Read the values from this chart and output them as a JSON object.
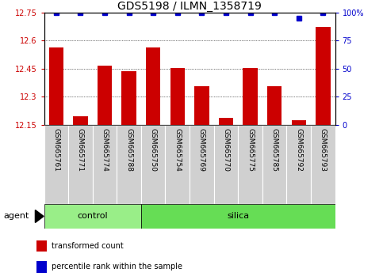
{
  "title": "GDS5198 / ILMN_1358719",
  "samples": [
    "GSM665761",
    "GSM665771",
    "GSM665774",
    "GSM665788",
    "GSM665750",
    "GSM665754",
    "GSM665769",
    "GSM665770",
    "GSM665775",
    "GSM665785",
    "GSM665792",
    "GSM665793"
  ],
  "red_values": [
    12.565,
    12.195,
    12.465,
    12.435,
    12.565,
    12.455,
    12.355,
    12.185,
    12.455,
    12.355,
    12.175,
    12.675
  ],
  "blue_values": [
    100,
    100,
    100,
    100,
    100,
    100,
    100,
    100,
    100,
    100,
    95,
    100
  ],
  "ylim_left": [
    12.15,
    12.75
  ],
  "ylim_right": [
    0,
    100
  ],
  "yticks_left": [
    12.15,
    12.3,
    12.45,
    12.6,
    12.75
  ],
  "yticks_right": [
    0,
    25,
    50,
    75,
    100
  ],
  "ytick_labels_right": [
    "0",
    "25",
    "50",
    "75",
    "100%"
  ],
  "control_indices": [
    0,
    1,
    2,
    3
  ],
  "silica_indices": [
    4,
    5,
    6,
    7,
    8,
    9,
    10,
    11
  ],
  "bar_width": 0.6,
  "red_color": "#cc0000",
  "blue_color": "#0000cc",
  "control_color": "#99EE88",
  "silica_color": "#66DD55",
  "tick_area_color": "#d0d0d0",
  "background_color": "#ffffff",
  "grid_color": "#000000",
  "title_fontsize": 10,
  "tick_fontsize": 7,
  "label_fontsize": 8,
  "sample_fontsize": 6.5,
  "legend_fontsize": 7
}
